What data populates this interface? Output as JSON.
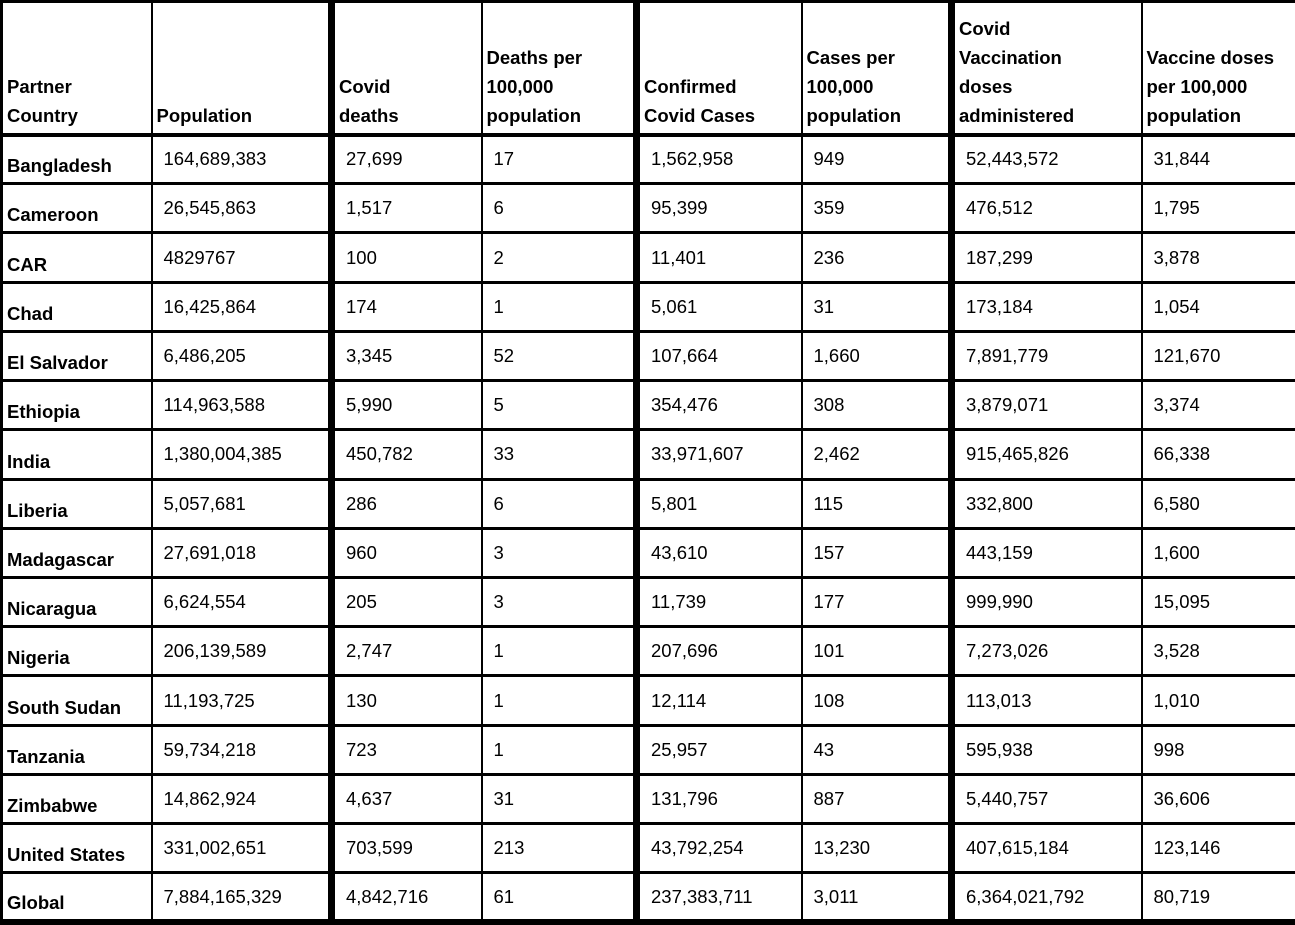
{
  "page": {
    "background_color": "#ffffff",
    "border_color": "#000000",
    "text_color": "#000000"
  },
  "table": {
    "description": "Covid statistics by partner country",
    "thick_left_columns": [
      2,
      4,
      6
    ],
    "columns": [
      {
        "key": "partner_country",
        "label": "Partner\nCountry"
      },
      {
        "key": "population",
        "label": "Population"
      },
      {
        "key": "covid_deaths",
        "label": "Covid\ndeaths"
      },
      {
        "key": "deaths_per_100k",
        "label": "Deaths per\n100,000\npopulation"
      },
      {
        "key": "confirmed_cases",
        "label": "Confirmed\nCovid Cases"
      },
      {
        "key": "cases_per_100k",
        "label": "Cases per\n100,000\npopulation"
      },
      {
        "key": "vaccination_doses",
        "label": "Covid\nVaccination\ndoses\nadministered"
      },
      {
        "key": "doses_per_100k",
        "label": "Vaccine doses\nper 100,000\npopulation"
      }
    ],
    "rows": [
      {
        "country": "Bangladesh",
        "values": [
          "164,689,383",
          "27,699",
          "17",
          "1,562,958",
          "949",
          "52,443,572",
          "31,844"
        ]
      },
      {
        "country": "Cameroon",
        "values": [
          "26,545,863",
          "1,517",
          "6",
          "95,399",
          "359",
          "476,512",
          "1,795"
        ]
      },
      {
        "country": "CAR",
        "values": [
          "4829767",
          "100",
          "2",
          "11,401",
          "236",
          "187,299",
          "3,878"
        ]
      },
      {
        "country": "Chad",
        "values": [
          "16,425,864",
          "174",
          "1",
          "5,061",
          "31",
          "173,184",
          "1,054"
        ]
      },
      {
        "country": "El Salvador",
        "values": [
          "6,486,205",
          "3,345",
          "52",
          "107,664",
          "1,660",
          "7,891,779",
          "121,670"
        ]
      },
      {
        "country": "Ethiopia",
        "values": [
          "114,963,588",
          "5,990",
          "5",
          "354,476",
          "308",
          "3,879,071",
          "3,374"
        ]
      },
      {
        "country": "India",
        "values": [
          "1,380,004,385",
          "450,782",
          "33",
          "33,971,607",
          "2,462",
          "915,465,826",
          "66,338"
        ]
      },
      {
        "country": "Liberia",
        "values": [
          "5,057,681",
          "286",
          "6",
          "5,801",
          "115",
          "332,800",
          "6,580"
        ]
      },
      {
        "country": "Madagascar",
        "values": [
          "27,691,018",
          "960",
          "3",
          "43,610",
          "157",
          "443,159",
          "1,600"
        ]
      },
      {
        "country": "Nicaragua",
        "values": [
          "6,624,554",
          "205",
          "3",
          "11,739",
          "177",
          "999,990",
          "15,095"
        ]
      },
      {
        "country": "Nigeria",
        "values": [
          "206,139,589",
          "2,747",
          "1",
          "207,696",
          "101",
          "7,273,026",
          "3,528"
        ]
      },
      {
        "country": "South Sudan",
        "values": [
          "11,193,725",
          "130",
          "1",
          "12,114",
          "108",
          "113,013",
          "1,010"
        ]
      },
      {
        "country": "Tanzania",
        "values": [
          "59,734,218",
          "723",
          "1",
          "25,957",
          "43",
          "595,938",
          "998"
        ]
      },
      {
        "country": "Zimbabwe",
        "values": [
          "14,862,924",
          "4,637",
          "31",
          "131,796",
          "887",
          "5,440,757",
          "36,606"
        ]
      },
      {
        "country": "United States",
        "values": [
          "331,002,651",
          "703,599",
          "213",
          "43,792,254",
          "13,230",
          "407,615,184",
          "123,146"
        ]
      },
      {
        "country": "Global",
        "values": [
          "7,884,165,329",
          "4,842,716",
          "61",
          "237,383,711",
          "3,011",
          "6,364,021,792",
          "80,719"
        ]
      }
    ]
  }
}
